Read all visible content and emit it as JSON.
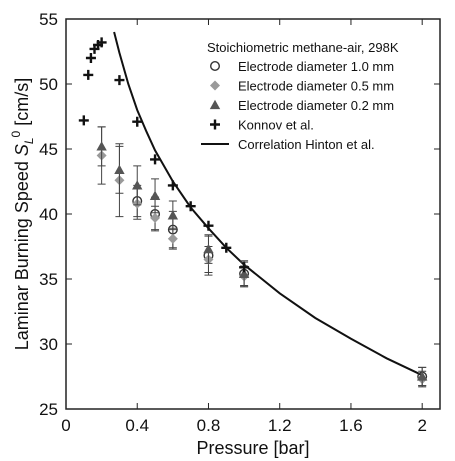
{
  "chart_data": {
    "type": "scatter",
    "title": "",
    "xlabel": "Pressure [bar]",
    "ylabel_main": "Laminar Burning Speed ",
    "ylabel_symbol": "S",
    "ylabel_sub": "L",
    "ylabel_sup": "0",
    "ylabel_unit": " [cm/s]",
    "xlim": [
      0,
      2.1
    ],
    "ylim": [
      25,
      55
    ],
    "xticks": [
      0,
      0.4,
      0.8,
      1.2,
      1.6,
      2
    ],
    "xtick_labels": [
      "0",
      "0.4",
      "0.8",
      "1.2",
      "1.6",
      "2"
    ],
    "yticks": [
      25,
      30,
      35,
      40,
      45,
      50,
      55
    ],
    "ytick_labels": [
      "25",
      "30",
      "35",
      "40",
      "45",
      "50",
      "55"
    ],
    "legend_title": "Stoichiometric methane-air, 298K",
    "legend_position": "top-right",
    "grid": false,
    "series": [
      {
        "name": "Electrode diameter 1.0 mm",
        "marker": "open-circle",
        "color": "#333333",
        "points": [
          {
            "x": 0.4,
            "y": 41.0,
            "err": 1.2
          },
          {
            "x": 0.5,
            "y": 40.0,
            "err": 1.3
          },
          {
            "x": 0.6,
            "y": 38.8,
            "err": 1.4
          },
          {
            "x": 0.8,
            "y": 36.8,
            "err": 1.5
          },
          {
            "x": 1.0,
            "y": 35.4,
            "err": 1.0
          },
          {
            "x": 2.0,
            "y": 27.5,
            "err": 0.7
          }
        ]
      },
      {
        "name": "Electrode diameter 0.5 mm",
        "marker": "diamond",
        "color": "#9a9a9a",
        "points": [
          {
            "x": 0.2,
            "y": 44.5,
            "err": 2.2
          },
          {
            "x": 0.3,
            "y": 42.6,
            "err": 2.8
          },
          {
            "x": 0.4,
            "y": 40.8,
            "err": 1.2
          },
          {
            "x": 0.5,
            "y": 39.7,
            "err": 0.9
          },
          {
            "x": 0.6,
            "y": 38.1,
            "err": 0.8
          },
          {
            "x": 0.8,
            "y": 36.5,
            "err": 1.0
          },
          {
            "x": 1.0,
            "y": 35.2,
            "err": 0.8
          },
          {
            "x": 2.0,
            "y": 27.3,
            "err": 0.6
          }
        ]
      },
      {
        "name": "Electrode diameter 0.2 mm",
        "marker": "triangle",
        "color": "#555555",
        "points": [
          {
            "x": 0.2,
            "y": 45.2,
            "err": 1.5
          },
          {
            "x": 0.3,
            "y": 43.4,
            "err": 1.8
          },
          {
            "x": 0.4,
            "y": 42.2,
            "err": 1.5
          },
          {
            "x": 0.5,
            "y": 41.4,
            "err": 1.3
          },
          {
            "x": 0.6,
            "y": 39.9,
            "err": 1.1
          },
          {
            "x": 0.8,
            "y": 37.3,
            "err": 1.1
          },
          {
            "x": 1.0,
            "y": 35.4,
            "err": 0.9
          },
          {
            "x": 2.0,
            "y": 27.5,
            "err": 0.7
          }
        ]
      },
      {
        "name": "Konnov et al.",
        "marker": "plus",
        "color": "#111111",
        "points": [
          {
            "x": 0.1,
            "y": 47.2
          },
          {
            "x": 0.125,
            "y": 50.7
          },
          {
            "x": 0.14,
            "y": 52.0
          },
          {
            "x": 0.16,
            "y": 52.7
          },
          {
            "x": 0.18,
            "y": 53.0
          },
          {
            "x": 0.2,
            "y": 53.2
          },
          {
            "x": 0.3,
            "y": 50.3
          },
          {
            "x": 0.4,
            "y": 47.1
          },
          {
            "x": 0.5,
            "y": 44.2
          },
          {
            "x": 0.6,
            "y": 42.2
          },
          {
            "x": 0.7,
            "y": 40.6
          },
          {
            "x": 0.8,
            "y": 39.1
          },
          {
            "x": 0.9,
            "y": 37.4
          },
          {
            "x": 1.0,
            "y": 35.9
          }
        ]
      },
      {
        "name": "Correlation Hinton et al.",
        "type": "line",
        "color": "#111111",
        "x": [
          0.27,
          0.3,
          0.35,
          0.4,
          0.45,
          0.5,
          0.6,
          0.7,
          0.8,
          0.9,
          1.0,
          1.2,
          1.4,
          1.6,
          1.8,
          2.0
        ],
        "y": [
          54.0,
          52.4,
          50.0,
          48.0,
          46.4,
          44.9,
          42.5,
          40.5,
          38.9,
          37.4,
          36.1,
          33.9,
          32.0,
          30.4,
          28.9,
          27.6
        ]
      }
    ]
  }
}
